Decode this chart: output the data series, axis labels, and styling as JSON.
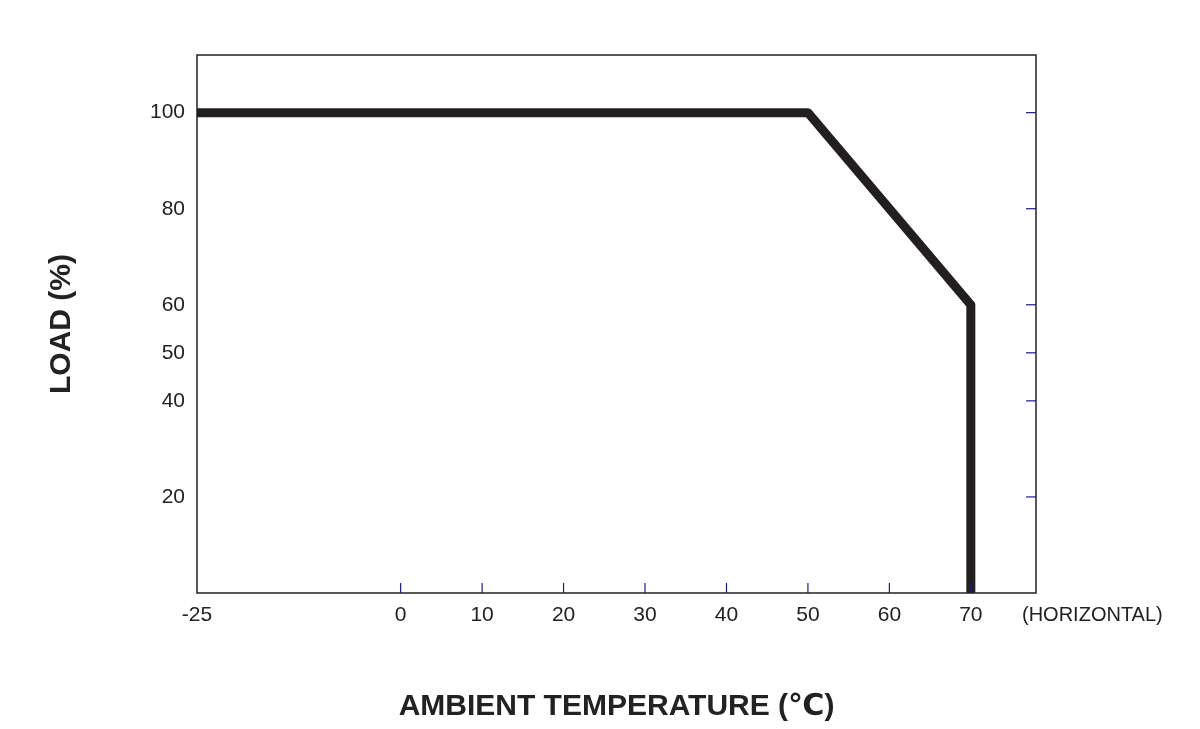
{
  "chart_data": {
    "type": "line",
    "xlabel": "AMBIENT TEMPERATURE (℃)",
    "ylabel": "LOAD (%)",
    "annotations": [
      "(HORIZONTAL)"
    ],
    "x": [
      -25,
      50,
      70,
      70
    ],
    "series": [
      {
        "color": "#231f20",
        "values": [
          100,
          100,
          60,
          0
        ]
      }
    ],
    "xlim": [
      -25,
      78
    ],
    "xticks": [
      -25,
      0,
      10,
      20,
      30,
      40,
      50,
      60,
      70
    ],
    "ylim": [
      0,
      112
    ],
    "yticks": [
      20,
      40,
      50,
      60,
      80,
      100
    ],
    "grid": false,
    "legend": false,
    "marker": "none",
    "line_style": "solid"
  }
}
